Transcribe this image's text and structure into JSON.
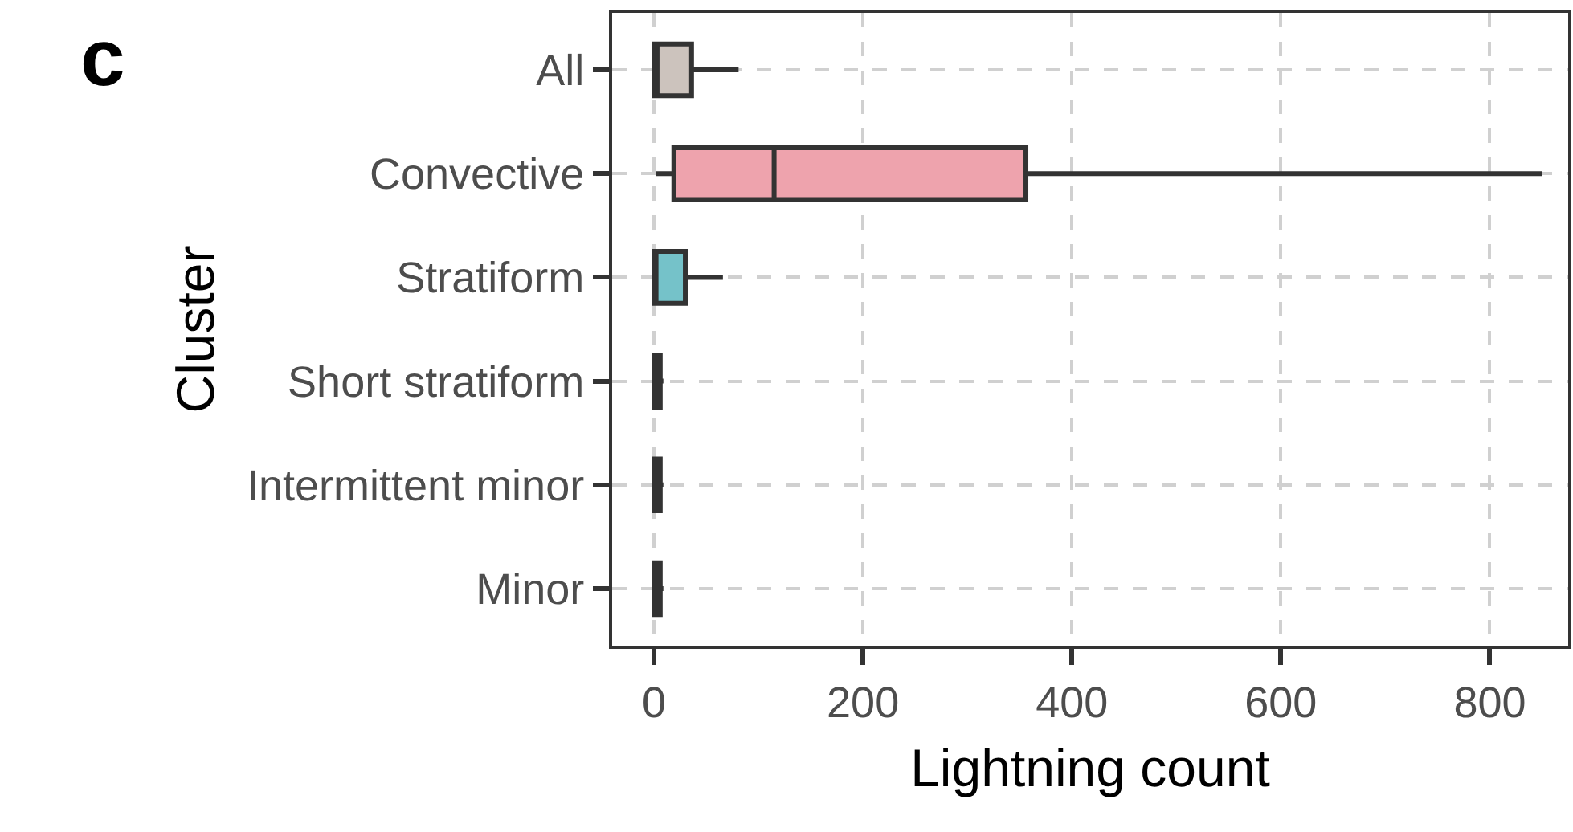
{
  "chart_data": {
    "type": "box",
    "orientation": "horizontal",
    "title": "c",
    "xlabel": "Lightning count",
    "ylabel": "Cluster",
    "categories": [
      "All",
      "Convective",
      "Stratiform",
      "Short stratiform",
      "Intermittent minor",
      "Minor"
    ],
    "boxes": [
      {
        "q1": 0,
        "median": 3,
        "q3": 36,
        "high": 81
      },
      {
        "low": 2,
        "q1": 19,
        "median": 115,
        "q3": 356,
        "high": 850
      },
      {
        "q1": 0,
        "median": 2,
        "q3": 30,
        "high": 66
      },
      {
        "q1": 0,
        "median": 2,
        "q3": 6,
        "high": 9
      },
      {
        "q1": 0,
        "median": 2,
        "q3": 6,
        "high": 9
      },
      {
        "q1": 0,
        "median": 2,
        "q3": 6,
        "high": 9
      }
    ],
    "colors": [
      "#ccc3bd",
      "#eea3ad",
      "#75c2c9",
      "#333333",
      "#333333",
      "#333333"
    ],
    "xlim": [
      -40,
      875
    ],
    "xticks": [
      0,
      200,
      400,
      600,
      800
    ],
    "grid": true,
    "legend": false
  }
}
